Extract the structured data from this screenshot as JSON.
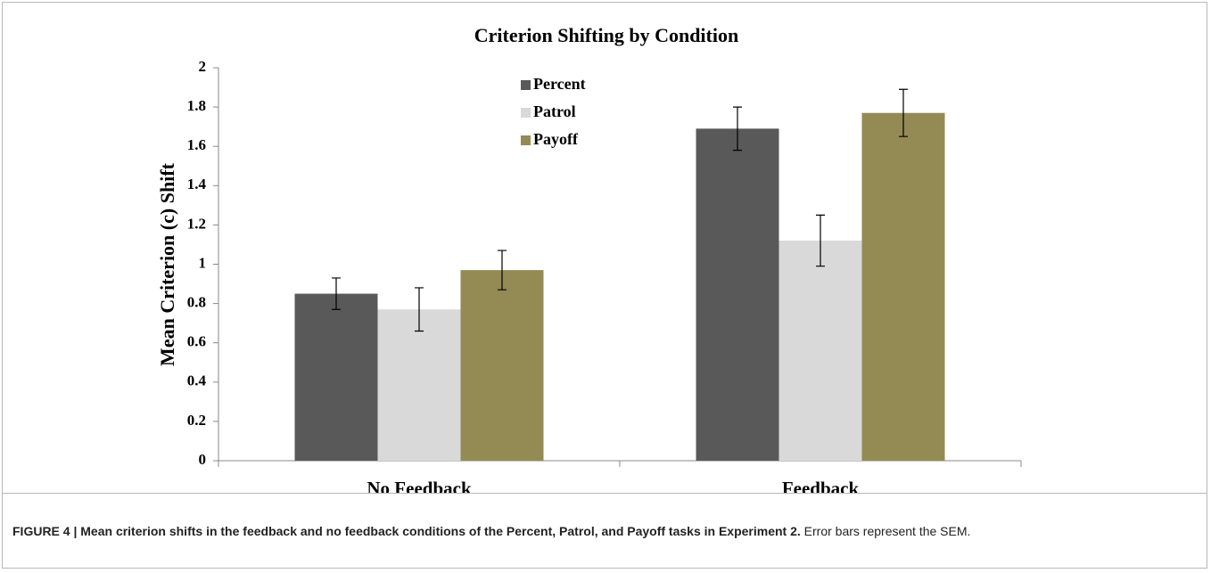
{
  "chart_data": {
    "type": "bar",
    "title": "Criterion Shifting by Condition",
    "ylabel": "Mean Criterion (c) Shift",
    "categories": [
      "No Feedback",
      "Feedback"
    ],
    "series": [
      {
        "name": "Percent",
        "color": "#595959",
        "values": [
          0.85,
          1.69
        ],
        "errors": [
          0.08,
          0.11
        ]
      },
      {
        "name": "Patrol",
        "color": "#d9d9d9",
        "values": [
          0.77,
          1.12
        ],
        "errors": [
          0.11,
          0.13
        ]
      },
      {
        "name": "Payoff",
        "color": "#948a54",
        "values": [
          0.97,
          1.77
        ],
        "errors": [
          0.1,
          0.12
        ]
      }
    ],
    "ylim": [
      0,
      2
    ],
    "yticks": [
      0,
      0.2,
      0.4,
      0.6,
      0.8,
      1,
      1.2,
      1.4,
      1.6,
      1.8,
      2
    ],
    "legend": "top"
  },
  "caption": {
    "label": "FIGURE 4 | Mean criterion shifts in the feedback and no feedback conditions of the Percent, Patrol, and Payoff tasks in Experiment 2.",
    "text": " Error bars represent the SEM."
  }
}
